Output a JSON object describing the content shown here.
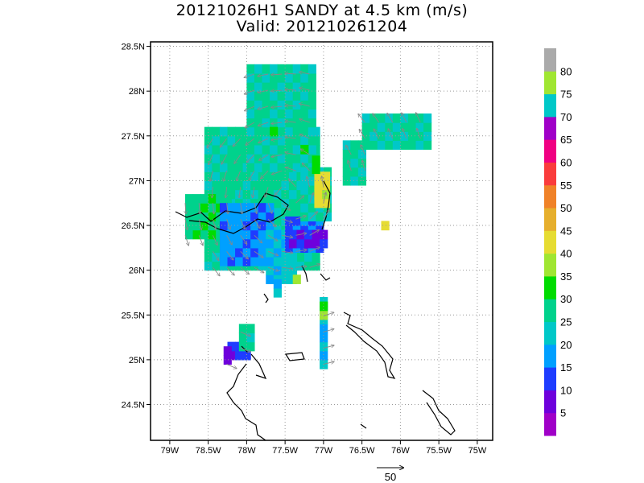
{
  "title_line1": "20121026H1 SANDY at 4.5 km (m/s)",
  "title_line2": "Valid: 201210261204",
  "chart_data": {
    "type": "heatmap",
    "title": "20121026H1 SANDY at 4.5 km (m/s)",
    "subtitle": "Valid: 201210261204",
    "xlim": [
      -79.25,
      -74.8
    ],
    "ylim": [
      24.1,
      28.55
    ],
    "x_ticks": [
      -79,
      -78.5,
      -78,
      -77.5,
      -77,
      -76.5,
      -76,
      -75.5,
      -75
    ],
    "x_tick_labels": [
      "79W",
      "78.5W",
      "78W",
      "77.5W",
      "77W",
      "76.5W",
      "76W",
      "75.5W",
      "75W"
    ],
    "y_ticks": [
      24.5,
      25,
      25.5,
      26,
      26.5,
      27,
      27.5,
      28,
      28.5
    ],
    "y_tick_labels": [
      "24.5N",
      "25N",
      "25.5N",
      "26N",
      "26.5N",
      "27N",
      "27.5N",
      "28N",
      "28.5N"
    ],
    "grid": true,
    "colorbar": {
      "levels": [
        5,
        10,
        15,
        20,
        25,
        30,
        35,
        40,
        45,
        50,
        55,
        60,
        65,
        70,
        75,
        80
      ],
      "labels": [
        "5",
        "10",
        "15",
        "20",
        "25",
        "30",
        "35",
        "40",
        "45",
        "50",
        "55",
        "60",
        "65",
        "70",
        "75",
        "80"
      ],
      "colors": [
        "#a000c8",
        "#6e00dc",
        "#1e3cff",
        "#00a0ff",
        "#00c8c8",
        "#00d28c",
        "#00dc00",
        "#a0e632",
        "#e6dc32",
        "#e6af2d",
        "#f08228",
        "#fa3c3c",
        "#f00082",
        "#a000c8",
        "#00c8c8",
        "#a0e632",
        "#aaaaaa"
      ]
    },
    "reference_vector": {
      "label": "50",
      "value": 50
    },
    "regions": [
      {
        "lon": [
          -78.55,
          -77.05
        ],
        "lat": [
          26.0,
          27.6
        ],
        "value": 27
      },
      {
        "lon": [
          -78.0,
          -77.1
        ],
        "lat": [
          27.1,
          28.3
        ],
        "value": 26
      },
      {
        "lon": [
          -78.8,
          -78.2
        ],
        "lat": [
          26.35,
          26.8
        ],
        "value": 28
      },
      {
        "lon": [
          -78.35,
          -77.7
        ],
        "lat": [
          26.05,
          26.7
        ],
        "value": 17
      },
      {
        "lon": [
          -77.75,
          -77.4
        ],
        "lat": [
          25.85,
          26.4
        ],
        "value": 22
      },
      {
        "lon": [
          -77.5,
          -77.0
        ],
        "lat": [
          26.2,
          26.55
        ],
        "value": 14
      },
      {
        "lon": [
          -77.45,
          -77.0
        ],
        "lat": [
          26.25,
          26.4
        ],
        "value": 9
      },
      {
        "lon": [
          -77.3,
          -76.95
        ],
        "lat": [
          26.55,
          27.1
        ],
        "value": 24
      },
      {
        "lon": [
          -77.12,
          -77.0
        ],
        "lat": [
          26.7,
          27.05
        ],
        "value": 42
      },
      {
        "lon": [
          -77.15,
          -77.05
        ],
        "lat": [
          27.08,
          27.2
        ],
        "value": 33
      },
      {
        "lon": [
          -77.7,
          -77.6
        ],
        "lat": [
          27.4,
          27.55
        ],
        "value": 31
      },
      {
        "lon": [
          -77.3,
          -77.2
        ],
        "lat": [
          27.3,
          27.4
        ],
        "value": 33
      },
      {
        "lon": [
          -76.75,
          -76.45
        ],
        "lat": [
          26.95,
          27.4
        ],
        "value": 26
      },
      {
        "lon": [
          -76.5,
          -75.6
        ],
        "lat": [
          27.35,
          27.75
        ],
        "value": 26
      },
      {
        "lon": [
          -76.25,
          -76.15
        ],
        "lat": [
          26.45,
          26.55
        ],
        "value": 44
      },
      {
        "lon": [
          -77.4,
          -77.3
        ],
        "lat": [
          25.85,
          25.95
        ],
        "value": 38
      },
      {
        "lon": [
          -77.65,
          -77.55
        ],
        "lat": [
          25.7,
          25.85
        ],
        "value": 18
      },
      {
        "lon": [
          -77.05,
          -76.95
        ],
        "lat": [
          24.9,
          25.65
        ],
        "value": 20
      },
      {
        "lon": [
          -77.05,
          -76.95
        ],
        "lat": [
          25.45,
          25.6
        ],
        "value": 33
      },
      {
        "lon": [
          -78.25,
          -78.0
        ],
        "lat": [
          25.0,
          25.2
        ],
        "value": 12
      },
      {
        "lon": [
          -78.3,
          -78.2
        ],
        "lat": [
          24.95,
          25.1
        ],
        "value": 8
      },
      {
        "lon": [
          -78.1,
          -77.9
        ],
        "lat": [
          25.1,
          25.35
        ],
        "value": 26
      }
    ]
  }
}
